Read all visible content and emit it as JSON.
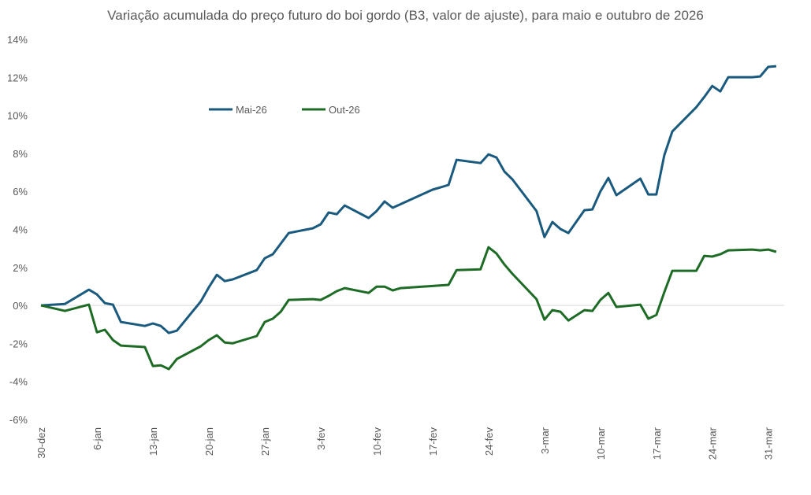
{
  "chart_data": {
    "type": "line",
    "title": "Variação acumulada do preço futuro do boi gordo (B3, valor de ajuste), para maio e outubro de 2026",
    "xlabel": "",
    "ylabel": "",
    "ylim": [
      -6,
      14
    ],
    "yticks": [
      "-6%",
      "-4%",
      "-2%",
      "0%",
      "2%",
      "4%",
      "6%",
      "8%",
      "10%",
      "12%",
      "14%"
    ],
    "xlim_days": [
      0,
      93
    ],
    "xticks": [
      {
        "day": 0,
        "label": "30-dez"
      },
      {
        "day": 7,
        "label": "6-jan"
      },
      {
        "day": 14,
        "label": "13-jan"
      },
      {
        "day": 21,
        "label": "20-jan"
      },
      {
        "day": 28,
        "label": "27-jan"
      },
      {
        "day": 35,
        "label": "3-fev"
      },
      {
        "day": 42,
        "label": "10-fev"
      },
      {
        "day": 49,
        "label": "17-fev"
      },
      {
        "day": 56,
        "label": "24-fev"
      },
      {
        "day": 63,
        "label": "3-mar"
      },
      {
        "day": 70,
        "label": "10-mar"
      },
      {
        "day": 77,
        "label": "17-mar"
      },
      {
        "day": 84,
        "label": "24-mar"
      },
      {
        "day": 91,
        "label": "31-mar"
      }
    ],
    "grid": "zero-line only",
    "legend_position": "top-left",
    "series": [
      {
        "name": "Mai-26",
        "color": "#1a5a7e",
        "points": [
          [
            0,
            0
          ],
          [
            3,
            0.08
          ],
          [
            6,
            0.83
          ],
          [
            7,
            0.58
          ],
          [
            8,
            0.12
          ],
          [
            9,
            0.04
          ],
          [
            10,
            -0.87
          ],
          [
            13,
            -1.08
          ],
          [
            14,
            -0.95
          ],
          [
            15,
            -1.08
          ],
          [
            16,
            -1.45
          ],
          [
            17,
            -1.33
          ],
          [
            20,
            0.21
          ],
          [
            21,
            0.95
          ],
          [
            22,
            1.61
          ],
          [
            23,
            1.28
          ],
          [
            24,
            1.37
          ],
          [
            27,
            1.86
          ],
          [
            28,
            2.48
          ],
          [
            29,
            2.69
          ],
          [
            31,
            3.81
          ],
          [
            34,
            4.06
          ],
          [
            35,
            4.27
          ],
          [
            36,
            4.89
          ],
          [
            37,
            4.8
          ],
          [
            38,
            5.26
          ],
          [
            41,
            4.6
          ],
          [
            42,
            4.97
          ],
          [
            43,
            5.47
          ],
          [
            44,
            5.14
          ],
          [
            49,
            6.09
          ],
          [
            50,
            6.21
          ],
          [
            51,
            6.34
          ],
          [
            52,
            7.66
          ],
          [
            55,
            7.49
          ],
          [
            56,
            7.95
          ],
          [
            57,
            7.78
          ],
          [
            58,
            7.04
          ],
          [
            59,
            6.63
          ],
          [
            62,
            4.97
          ],
          [
            63,
            3.6
          ],
          [
            64,
            4.39
          ],
          [
            65,
            4.02
          ],
          [
            66,
            3.81
          ],
          [
            68,
            5.01
          ],
          [
            69,
            5.05
          ],
          [
            70,
            6.0
          ],
          [
            71,
            6.71
          ],
          [
            72,
            5.8
          ],
          [
            75,
            6.67
          ],
          [
            76,
            5.84
          ],
          [
            77,
            5.84
          ],
          [
            78,
            7.91
          ],
          [
            79,
            9.15
          ],
          [
            82,
            10.43
          ],
          [
            83,
            10.97
          ],
          [
            84,
            11.55
          ],
          [
            85,
            11.26
          ],
          [
            86,
            12.01
          ],
          [
            89,
            12.01
          ],
          [
            90,
            12.05
          ],
          [
            91,
            12.55
          ],
          [
            92,
            12.59
          ]
        ]
      },
      {
        "name": "Out-26",
        "color": "#1e6b26",
        "points": [
          [
            0,
            0
          ],
          [
            3,
            -0.29
          ],
          [
            6,
            0.04
          ],
          [
            7,
            -1.41
          ],
          [
            8,
            -1.28
          ],
          [
            9,
            -1.82
          ],
          [
            10,
            -2.11
          ],
          [
            13,
            -2.19
          ],
          [
            14,
            -3.19
          ],
          [
            15,
            -3.15
          ],
          [
            16,
            -3.35
          ],
          [
            17,
            -2.82
          ],
          [
            20,
            -2.15
          ],
          [
            21,
            -1.82
          ],
          [
            22,
            -1.57
          ],
          [
            23,
            -1.95
          ],
          [
            24,
            -1.99
          ],
          [
            27,
            -1.61
          ],
          [
            28,
            -0.87
          ],
          [
            29,
            -0.7
          ],
          [
            30,
            -0.33
          ],
          [
            31,
            0.29
          ],
          [
            34,
            0.33
          ],
          [
            35,
            0.29
          ],
          [
            36,
            0.5
          ],
          [
            37,
            0.75
          ],
          [
            38,
            0.91
          ],
          [
            41,
            0.66
          ],
          [
            42,
            0.99
          ],
          [
            43,
            0.99
          ],
          [
            44,
            0.79
          ],
          [
            45,
            0.91
          ],
          [
            51,
            1.08
          ],
          [
            52,
            1.86
          ],
          [
            55,
            1.9
          ],
          [
            56,
            3.06
          ],
          [
            57,
            2.73
          ],
          [
            58,
            2.15
          ],
          [
            59,
            1.66
          ],
          [
            62,
            0.33
          ],
          [
            63,
            -0.75
          ],
          [
            64,
            -0.25
          ],
          [
            65,
            -0.33
          ],
          [
            66,
            -0.79
          ],
          [
            68,
            -0.25
          ],
          [
            69,
            -0.29
          ],
          [
            70,
            0.29
          ],
          [
            71,
            0.66
          ],
          [
            72,
            -0.08
          ],
          [
            75,
            0.04
          ],
          [
            76,
            -0.7
          ],
          [
            77,
            -0.5
          ],
          [
            78,
            0.7
          ],
          [
            79,
            1.82
          ],
          [
            82,
            1.82
          ],
          [
            83,
            2.61
          ],
          [
            84,
            2.57
          ],
          [
            85,
            2.69
          ],
          [
            86,
            2.9
          ],
          [
            89,
            2.94
          ],
          [
            90,
            2.9
          ],
          [
            91,
            2.94
          ],
          [
            92,
            2.82
          ]
        ]
      }
    ]
  }
}
